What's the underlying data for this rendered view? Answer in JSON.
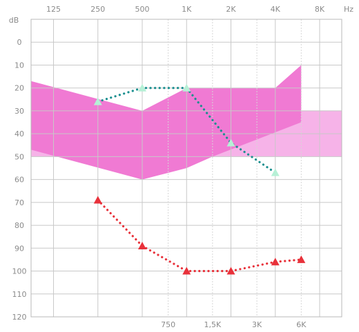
{
  "chart_data": {
    "type": "line",
    "title": "",
    "x_top_ticks": [
      {
        "label": "125",
        "freq": 125
      },
      {
        "label": "250",
        "freq": 250
      },
      {
        "label": "500",
        "freq": 500
      },
      {
        "label": "1K",
        "freq": 1000
      },
      {
        "label": "2K",
        "freq": 2000
      },
      {
        "label": "4K",
        "freq": 4000
      },
      {
        "label": "8K",
        "freq": 8000
      }
    ],
    "x_top_unit": "Hz",
    "x_bottom_ticks": [
      {
        "label": "750",
        "freq": 750
      },
      {
        "label": "1,5K",
        "freq": 1500
      },
      {
        "label": "3K",
        "freq": 3000
      },
      {
        "label": "6K",
        "freq": 6000
      }
    ],
    "x_scale": "log",
    "xlim": [
      88,
      11300
    ],
    "y_unit": "dB",
    "y_ticks": [
      0,
      10,
      20,
      30,
      40,
      50,
      60,
      70,
      80,
      90,
      100,
      110,
      120
    ],
    "ylim": [
      -10,
      120
    ],
    "y_inverted": true,
    "grid": true,
    "shaded_regions": [
      {
        "color": "#f07ad3",
        "upper": [
          [
            88,
            17
          ],
          [
            500,
            30
          ],
          [
            1000,
            20
          ],
          [
            4000,
            20
          ],
          [
            6000,
            10
          ]
        ],
        "lower": [
          [
            88,
            47
          ],
          [
            500,
            60
          ],
          [
            1000,
            55
          ],
          [
            1500,
            50
          ],
          [
            6000,
            35
          ]
        ]
      },
      {
        "color": "#f6b3e8",
        "upper": [
          [
            88,
            30
          ],
          [
            11300,
            30
          ]
        ],
        "lower": [
          [
            88,
            50
          ],
          [
            11300,
            50
          ]
        ]
      }
    ],
    "series": [
      {
        "color": "#1a8f8f",
        "marker_color": "#b6f0d6",
        "marker": "triangle",
        "points": [
          [
            250,
            26
          ],
          [
            500,
            20
          ],
          [
            1000,
            20
          ],
          [
            2000,
            44
          ],
          [
            4000,
            57
          ]
        ]
      },
      {
        "color": "#e8313a",
        "marker_color": "#e8313a",
        "marker": "triangle",
        "points": [
          [
            250,
            69
          ],
          [
            500,
            89
          ],
          [
            1000,
            100
          ],
          [
            2000,
            100
          ],
          [
            4000,
            96
          ],
          [
            6000,
            95
          ]
        ]
      }
    ]
  }
}
